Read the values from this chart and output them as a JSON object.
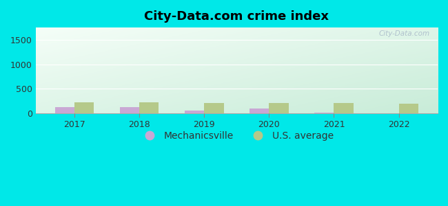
{
  "title": "City-Data.com crime index",
  "years": [
    2017,
    2018,
    2019,
    2020,
    2021,
    2022
  ],
  "mechanicsville": [
    120,
    130,
    55,
    95,
    15,
    0
  ],
  "us_average": [
    230,
    220,
    215,
    205,
    210,
    200
  ],
  "bar_color_city": "#c9a8d4",
  "bar_color_us": "#b5c98a",
  "background_color": "#00e8e8",
  "grad_top_left": "#f5fef8",
  "grad_bottom_right": "#c8ecd8",
  "ylim": [
    0,
    1750
  ],
  "yticks": [
    0,
    500,
    1000,
    1500
  ],
  "bar_width": 0.3,
  "legend_city": "Mechanicsville",
  "legend_us": "U.S. average",
  "watermark": "City-Data.com",
  "title_fontsize": 13,
  "tick_fontsize": 9,
  "legend_fontsize": 10,
  "grid_color": "#ffffff",
  "text_color": "#333333"
}
